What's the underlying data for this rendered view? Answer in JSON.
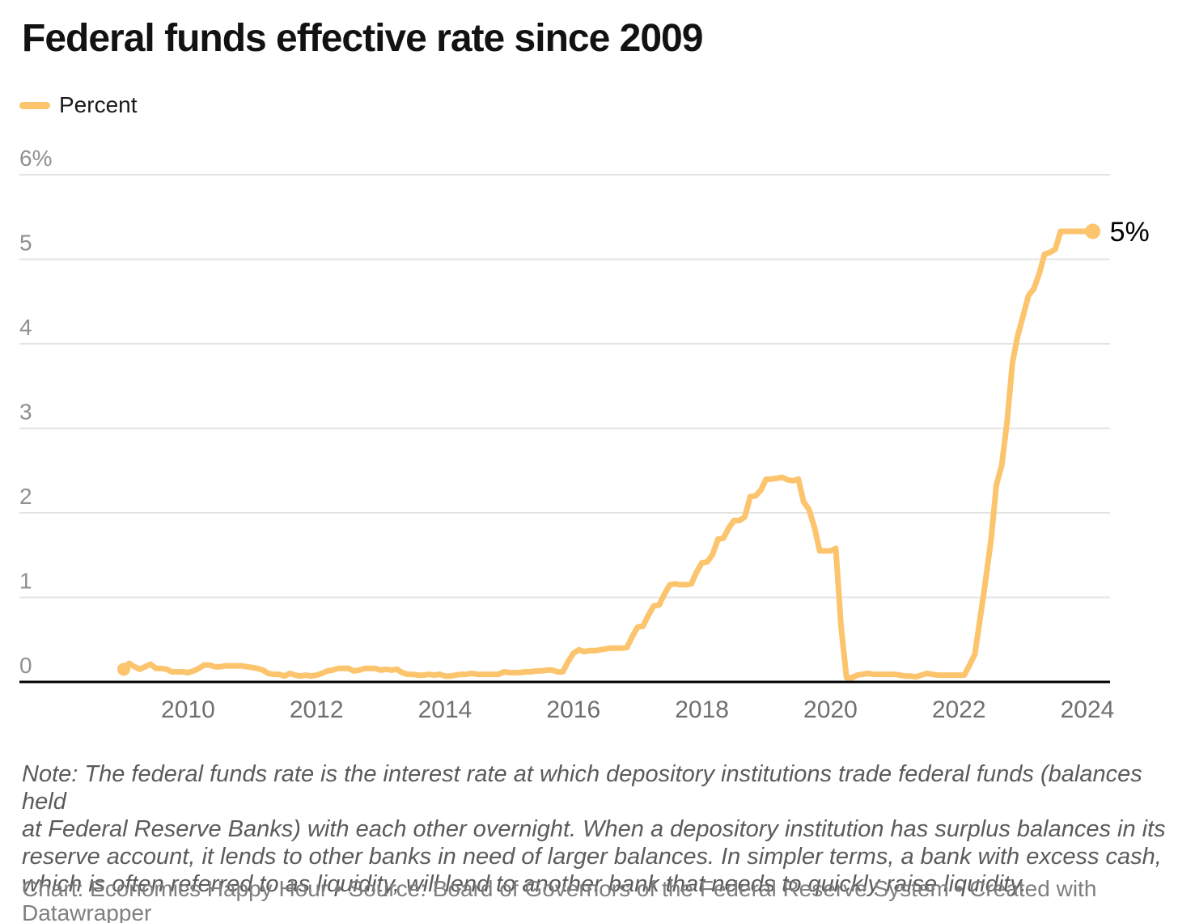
{
  "header": {
    "title": "Federal funds effective rate since 2009"
  },
  "legend": {
    "label": "Percent",
    "swatch_color": "#FBC46D"
  },
  "chart_data": {
    "type": "line",
    "title": "Federal funds effective rate since 2009",
    "xlabel": "",
    "ylabel": "Percent",
    "ylim": [
      0,
      6
    ],
    "x_range": [
      "2009-01",
      "2024-02"
    ],
    "frequency": "monthly",
    "grid": "horizontal",
    "legend_position": "top-left",
    "line_color": "#FBC46D",
    "end_label": "5%",
    "start_marker": true,
    "end_marker": true,
    "y_ticks": [
      {
        "value": 6,
        "label": "6%"
      },
      {
        "value": 5,
        "label": "5"
      },
      {
        "value": 4,
        "label": "4"
      },
      {
        "value": 3,
        "label": "3"
      },
      {
        "value": 2,
        "label": "2"
      },
      {
        "value": 1,
        "label": "1"
      },
      {
        "value": 0,
        "label": "0"
      }
    ],
    "x_ticks": [
      {
        "year": 2010,
        "label": "2010"
      },
      {
        "year": 2012,
        "label": "2012"
      },
      {
        "year": 2014,
        "label": "2014"
      },
      {
        "year": 2016,
        "label": "2016"
      },
      {
        "year": 2018,
        "label": "2018"
      },
      {
        "year": 2020,
        "label": "2020"
      },
      {
        "year": 2022,
        "label": "2022"
      },
      {
        "year": 2024,
        "label": "2024"
      }
    ],
    "series": [
      {
        "name": "Percent",
        "start_year": 2009,
        "start_month": 1,
        "values": [
          0.15,
          0.22,
          0.18,
          0.15,
          0.18,
          0.21,
          0.16,
          0.16,
          0.15,
          0.12,
          0.12,
          0.12,
          0.11,
          0.13,
          0.16,
          0.2,
          0.2,
          0.18,
          0.18,
          0.19,
          0.19,
          0.19,
          0.19,
          0.18,
          0.17,
          0.16,
          0.14,
          0.1,
          0.09,
          0.09,
          0.07,
          0.1,
          0.08,
          0.07,
          0.08,
          0.07,
          0.08,
          0.1,
          0.13,
          0.14,
          0.16,
          0.16,
          0.16,
          0.13,
          0.14,
          0.16,
          0.16,
          0.16,
          0.14,
          0.15,
          0.14,
          0.15,
          0.11,
          0.09,
          0.09,
          0.08,
          0.08,
          0.09,
          0.08,
          0.09,
          0.07,
          0.07,
          0.08,
          0.09,
          0.09,
          0.1,
          0.09,
          0.09,
          0.09,
          0.09,
          0.09,
          0.12,
          0.11,
          0.11,
          0.11,
          0.12,
          0.12,
          0.13,
          0.13,
          0.14,
          0.14,
          0.12,
          0.12,
          0.24,
          0.34,
          0.38,
          0.36,
          0.37,
          0.37,
          0.38,
          0.39,
          0.4,
          0.4,
          0.4,
          0.41,
          0.54,
          0.65,
          0.66,
          0.79,
          0.9,
          0.91,
          1.04,
          1.15,
          1.16,
          1.15,
          1.15,
          1.16,
          1.3,
          1.41,
          1.42,
          1.51,
          1.69,
          1.7,
          1.82,
          1.91,
          1.91,
          1.95,
          2.19,
          2.2,
          2.27,
          2.4,
          2.4,
          2.41,
          2.42,
          2.39,
          2.38,
          2.4,
          2.13,
          2.04,
          1.83,
          1.55,
          1.55,
          1.55,
          1.58,
          0.65,
          0.05,
          0.05,
          0.08,
          0.09,
          0.1,
          0.09,
          0.09,
          0.09,
          0.09,
          0.09,
          0.08,
          0.07,
          0.07,
          0.06,
          0.08,
          0.1,
          0.09,
          0.08,
          0.08,
          0.08,
          0.08,
          0.08,
          0.08,
          0.2,
          0.33,
          0.77,
          1.21,
          1.68,
          2.33,
          2.56,
          3.08,
          3.78,
          4.1,
          4.33,
          4.57,
          4.65,
          4.83,
          5.06,
          5.08,
          5.12,
          5.33,
          5.33,
          5.33,
          5.33,
          5.33,
          5.33,
          5.33
        ]
      }
    ]
  },
  "note": {
    "lines": [
      "Note: The federal funds rate is the interest rate at which depository institutions trade federal funds (balances held",
      "at Federal Reserve Banks) with each other overnight. When a depository institution has surplus balances in its",
      "reserve account, it lends to other banks in need of larger balances. In simpler terms, a bank with excess cash,",
      "which is often referred to as liquidity, will lend to another bank that needs to quickly raise liquidity."
    ]
  },
  "footer": {
    "credit": "Chart: Economics Happy Hour • Source: Board of Governors of the Federal Reserve System • Created with Datawrapper"
  }
}
